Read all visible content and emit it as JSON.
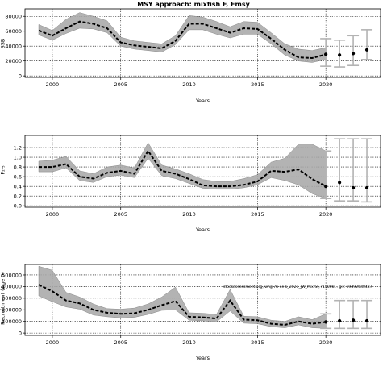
{
  "title": "MSY approach: mixfish F,  Fmsy",
  "chart_data": [
    {
      "type": "line",
      "panel": "ssb",
      "xlabel": "Years",
      "ylabel": "SSB",
      "xlim": [
        1998,
        2024
      ],
      "ylim": [
        -2000,
        90000
      ],
      "xticks": [
        2000,
        2005,
        2010,
        2015,
        2020
      ],
      "yticks": [
        0,
        20000,
        40000,
        60000,
        80000
      ],
      "ytick_labels": [
        "0",
        "20000",
        "40000",
        "60000",
        "80000"
      ],
      "grid": true,
      "x": [
        1999,
        2000,
        2001,
        2002,
        2003,
        2004,
        2005,
        2006,
        2007,
        2008,
        2009,
        2010,
        2011,
        2012,
        2013,
        2014,
        2015,
        2016,
        2017,
        2018,
        2019,
        2020
      ],
      "median": [
        61000,
        54000,
        64000,
        73000,
        70000,
        64000,
        45000,
        41000,
        39000,
        37000,
        47000,
        70000,
        70000,
        64000,
        58000,
        64000,
        63000,
        50000,
        35000,
        25000,
        24000,
        29000
      ],
      "lower": [
        55000,
        48000,
        57000,
        64000,
        63000,
        58000,
        40000,
        36000,
        34000,
        32000,
        42000,
        62000,
        62000,
        56000,
        51000,
        56000,
        56000,
        43000,
        28000,
        20000,
        18000,
        22000
      ],
      "upper": [
        69000,
        61000,
        76000,
        85000,
        80000,
        74000,
        52000,
        47000,
        45000,
        43000,
        54000,
        81000,
        79000,
        73000,
        66000,
        73000,
        72000,
        58000,
        43000,
        36000,
        34000,
        38000
      ],
      "projection": {
        "x": [
          2020,
          2021,
          2022,
          2023
        ],
        "median": [
          29000,
          28000,
          30000,
          35000
        ],
        "lower": [
          13000,
          12000,
          14000,
          22000
        ],
        "upper": [
          50000,
          48000,
          54000,
          62000
        ]
      }
    },
    {
      "type": "line",
      "panel": "fbar",
      "xlabel": "Years",
      "ylabel": "F₂‑₅",
      "xlim": [
        1998,
        2024
      ],
      "ylim": [
        -0.03,
        1.45
      ],
      "xticks": [
        2000,
        2005,
        2010,
        2015,
        2020
      ],
      "yticks": [
        0,
        0.2,
        0.4,
        0.6,
        0.8,
        1.0,
        1.2
      ],
      "ytick_labels": [
        "0.0",
        "0.2",
        "0.4",
        "0.6",
        "0.8",
        "1.0",
        "1.2"
      ],
      "grid": true,
      "x": [
        1999,
        2000,
        2001,
        2002,
        2003,
        2004,
        2005,
        2006,
        2007,
        2008,
        2009,
        2010,
        2011,
        2012,
        2013,
        2014,
        2015,
        2016,
        2017,
        2018,
        2019,
        2020
      ],
      "median": [
        0.8,
        0.8,
        0.86,
        0.6,
        0.56,
        0.68,
        0.72,
        0.66,
        1.13,
        0.72,
        0.66,
        0.55,
        0.42,
        0.4,
        0.4,
        0.43,
        0.5,
        0.72,
        0.7,
        0.75,
        0.55,
        0.4
      ],
      "lower": [
        0.7,
        0.7,
        0.78,
        0.52,
        0.48,
        0.6,
        0.63,
        0.58,
        0.98,
        0.62,
        0.56,
        0.46,
        0.36,
        0.34,
        0.34,
        0.37,
        0.43,
        0.58,
        0.52,
        0.43,
        0.25,
        0.15
      ],
      "upper": [
        0.92,
        0.94,
        1.02,
        0.72,
        0.66,
        0.8,
        0.84,
        0.78,
        1.3,
        0.84,
        0.76,
        0.66,
        0.54,
        0.5,
        0.5,
        0.56,
        0.64,
        0.9,
        0.98,
        1.27,
        1.27,
        1.13
      ],
      "projection": {
        "x": [
          2020,
          2021,
          2022,
          2023
        ],
        "median": [
          0.4,
          0.48,
          0.37,
          0.37
        ],
        "lower": [
          0.15,
          0.1,
          0.1,
          0.08
        ],
        "upper": [
          1.13,
          1.38,
          1.38,
          1.38
        ]
      }
    },
    {
      "type": "line",
      "panel": "recruitment",
      "xlabel": "Years",
      "ylabel": "Recruitment (Age 0)",
      "xlim": [
        1998,
        2024
      ],
      "ylim": [
        -20000,
        590000
      ],
      "xticks": [
        2000,
        2005,
        2010,
        2015,
        2020
      ],
      "yticks": [
        0,
        100000,
        200000,
        300000,
        400000,
        500000
      ],
      "ytick_labels": [
        "0",
        "100000",
        "200000",
        "300000",
        "400000",
        "500000"
      ],
      "grid": true,
      "annotation": "stockassessment.org, whg.7b-ce-k_2021_JW_MixfSt, r15008... git: 69d926d0437",
      "x": [
        1999,
        2000,
        2001,
        2002,
        2003,
        2004,
        2005,
        2006,
        2007,
        2008,
        2009,
        2010,
        2011,
        2012,
        2013,
        2014,
        2015,
        2016,
        2017,
        2018,
        2019,
        2020
      ],
      "median": [
        415000,
        360000,
        280000,
        255000,
        200000,
        175000,
        165000,
        170000,
        200000,
        240000,
        275000,
        140000,
        135000,
        125000,
        280000,
        115000,
        110000,
        80000,
        70000,
        100000,
        80000,
        95000
      ],
      "lower": [
        320000,
        270000,
        225000,
        205000,
        155000,
        140000,
        130000,
        135000,
        160000,
        195000,
        200000,
        110000,
        105000,
        95000,
        190000,
        85000,
        80000,
        55000,
        45000,
        70000,
        45000,
        40000
      ],
      "upper": [
        575000,
        540000,
        350000,
        310000,
        250000,
        210000,
        205000,
        215000,
        250000,
        310000,
        395000,
        175000,
        170000,
        160000,
        375000,
        145000,
        140000,
        110000,
        100000,
        140000,
        115000,
        165000
      ],
      "projection": {
        "x": [
          2020,
          2021,
          2022,
          2023
        ],
        "median": [
          95000,
          105000,
          110000,
          105000
        ],
        "lower": [
          40000,
          40000,
          40000,
          40000
        ],
        "upper": [
          165000,
          280000,
          280000,
          280000
        ]
      }
    }
  ]
}
